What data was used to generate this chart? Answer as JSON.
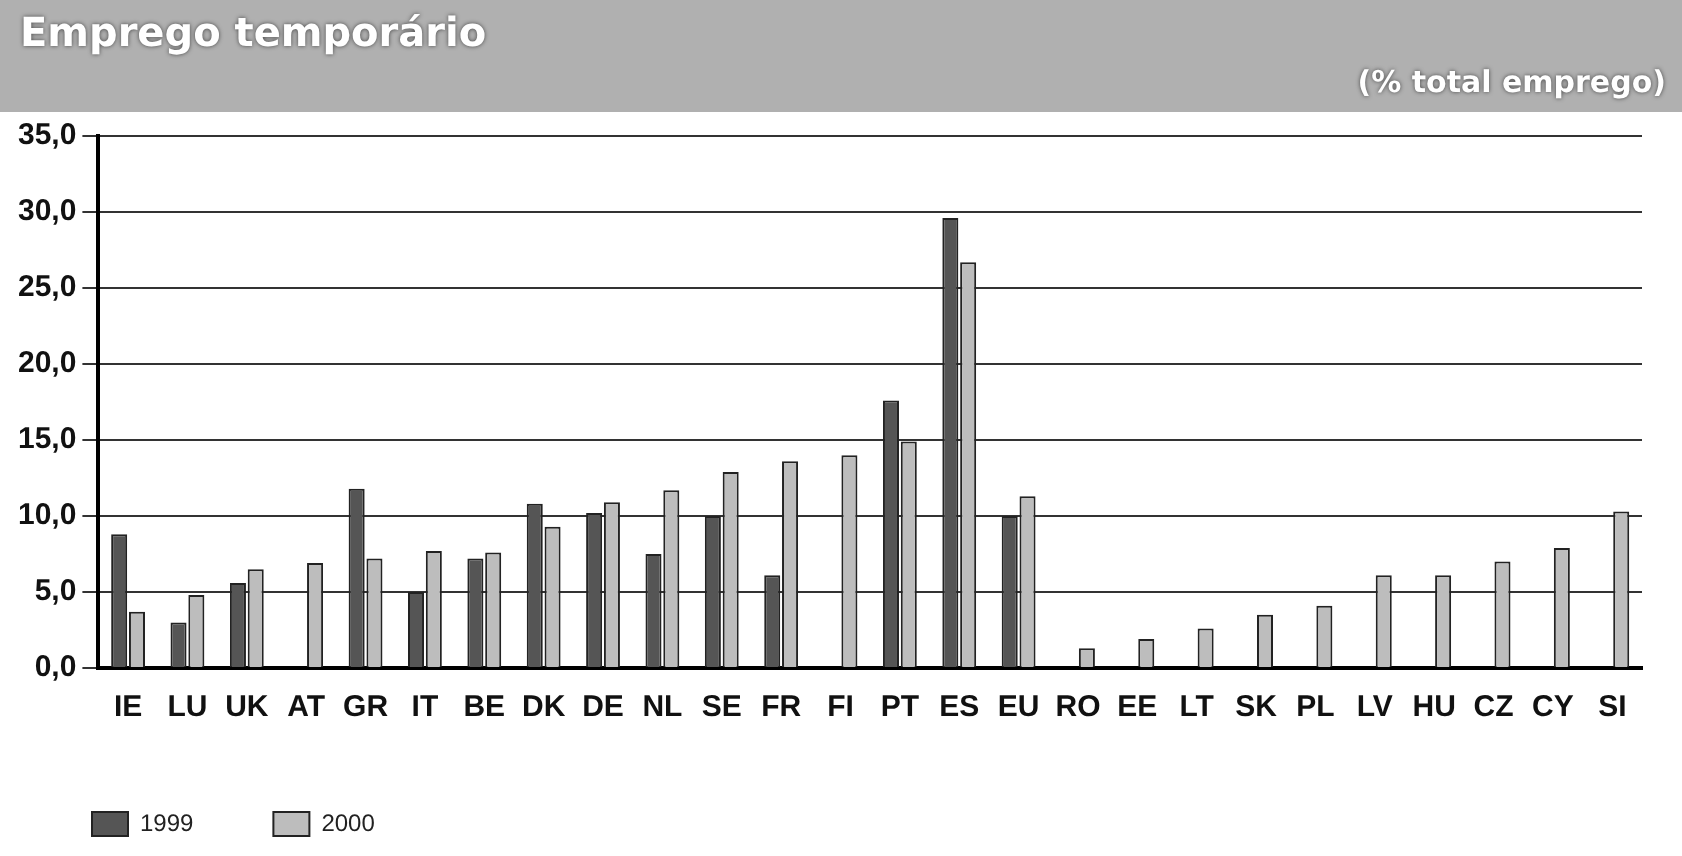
{
  "chart_data": {
    "type": "bar",
    "title": "Emprego temporário",
    "subtitle": "(% total emprego)",
    "categories": [
      "IE",
      "LU",
      "UK",
      "AT",
      "GR",
      "IT",
      "BE",
      "DK",
      "DE",
      "NL",
      "SE",
      "FR",
      "FI",
      "PT",
      "ES",
      "EU",
      "RO",
      "EE",
      "LT",
      "SK",
      "PL",
      "LV",
      "HU",
      "CZ",
      "CY",
      "SI"
    ],
    "series": [
      {
        "name": "1999",
        "color": "#555555",
        "values": [
          8.8,
          3.0,
          5.6,
          null,
          11.8,
          5.0,
          7.2,
          10.8,
          10.2,
          7.5,
          10.0,
          6.1,
          null,
          17.6,
          29.6,
          10.0,
          null,
          null,
          null,
          null,
          null,
          null,
          null,
          null,
          null,
          null
        ]
      },
      {
        "name": "2000",
        "color": "#bdbdbd",
        "values": [
          3.7,
          4.8,
          6.5,
          6.9,
          7.2,
          7.7,
          7.6,
          9.3,
          10.9,
          11.7,
          12.9,
          13.6,
          14.0,
          14.9,
          26.7,
          11.3,
          1.3,
          1.9,
          2.6,
          3.5,
          4.1,
          6.1,
          6.1,
          7.0,
          7.9,
          10.3
        ]
      }
    ],
    "ylim": [
      0,
      35
    ],
    "yticks": [
      {
        "value": 0,
        "label": "0,0"
      },
      {
        "value": 5,
        "label": "5,0"
      },
      {
        "value": 10,
        "label": "10,0"
      },
      {
        "value": 15,
        "label": "15,0"
      },
      {
        "value": 20,
        "label": "20,0"
      },
      {
        "value": 25,
        "label": "25,0"
      },
      {
        "value": 30,
        "label": "30,0"
      },
      {
        "value": 35,
        "label": "35,0"
      }
    ],
    "grid": "y",
    "legend": "bottom left"
  }
}
